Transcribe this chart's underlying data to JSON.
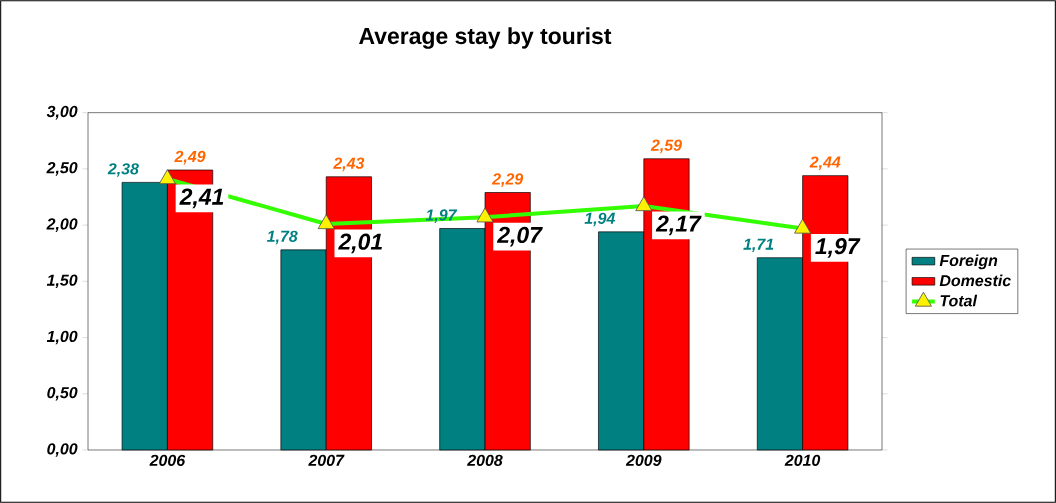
{
  "chart_data": {
    "type": "bar",
    "title": "Average stay by tourist",
    "categories": [
      "2006",
      "2007",
      "2008",
      "2009",
      "2010"
    ],
    "series": [
      {
        "name": "Foreign",
        "color": "#008080",
        "values": [
          2.38,
          1.78,
          1.97,
          1.94,
          1.71
        ],
        "value_labels": [
          "2,38",
          "1,78",
          "1,97",
          "1,94",
          "1,71"
        ]
      },
      {
        "name": "Domestic",
        "color": "#ff0000",
        "values": [
          2.49,
          2.43,
          2.29,
          2.59,
          2.44
        ],
        "value_labels": [
          "2,49",
          "2,43",
          "2,29",
          "2,59",
          "2,44"
        ]
      },
      {
        "name": "Total",
        "type": "line",
        "color": "#33ff00",
        "values": [
          2.41,
          2.01,
          2.07,
          2.17,
          1.97
        ],
        "value_labels": [
          "2,41",
          "2,01",
          "2,07",
          "2,17",
          "1,97"
        ]
      }
    ],
    "ylim": [
      0,
      3
    ],
    "yticks": [
      {
        "value": 0,
        "label": "0,00"
      },
      {
        "value": 0.5,
        "label": "0,50"
      },
      {
        "value": 1,
        "label": "1,00"
      },
      {
        "value": 1.5,
        "label": "1,50"
      },
      {
        "value": 2,
        "label": "2,00"
      },
      {
        "value": 2.5,
        "label": "2,50"
      },
      {
        "value": 3,
        "label": "3,00"
      }
    ],
    "legend": "right",
    "marker": "triangle",
    "line_style": "solid"
  }
}
